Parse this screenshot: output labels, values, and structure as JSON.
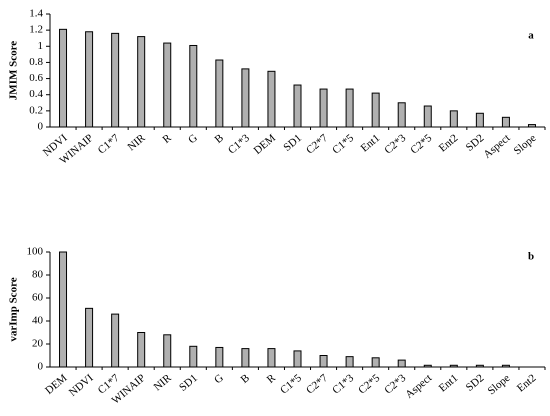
{
  "chart_data": [
    {
      "type": "bar",
      "panel_label": "a",
      "ylabel": "JMIM Score",
      "categories": [
        "NDVI",
        "WINAIP",
        "C1*7",
        "NIR",
        "R",
        "G",
        "B",
        "C1*3",
        "DEM",
        "SD1",
        "C2*7",
        "C1*5",
        "Ent1",
        "C2*3",
        "C2*5",
        "Ent2",
        "SD2",
        "Aspect",
        "Slope"
      ],
      "values": [
        1.21,
        1.18,
        1.16,
        1.12,
        1.04,
        1.01,
        0.83,
        0.72,
        0.69,
        0.52,
        0.47,
        0.47,
        0.42,
        0.3,
        0.26,
        0.2,
        0.17,
        0.12,
        0.03
      ],
      "color": "#b0b0b0",
      "ylim": [
        0,
        1.4
      ],
      "yticks": [
        0,
        0.2,
        0.4,
        0.6,
        0.8,
        1,
        1.2,
        1.4
      ]
    },
    {
      "type": "bar",
      "panel_label": "b",
      "ylabel": "varImp Score",
      "categories": [
        "DEM",
        "NDVI",
        "C1*7",
        "WINAIP",
        "NIR",
        "SD1",
        "G",
        "B",
        "R",
        "C1*5",
        "C2*7",
        "C1*3",
        "C2*5",
        "C2*3",
        "Aspect",
        "Ent1",
        "SD2",
        "Slope",
        "Ent2"
      ],
      "values": [
        100,
        51,
        46,
        30,
        28,
        18,
        17,
        16,
        16,
        14,
        10,
        9,
        8,
        6,
        1.5,
        1.5,
        1.5,
        1.5,
        0
      ],
      "color": "#b0b0b0",
      "ylim": [
        0,
        100
      ],
      "yticks": [
        0,
        20,
        40,
        60,
        80,
        100
      ]
    }
  ]
}
